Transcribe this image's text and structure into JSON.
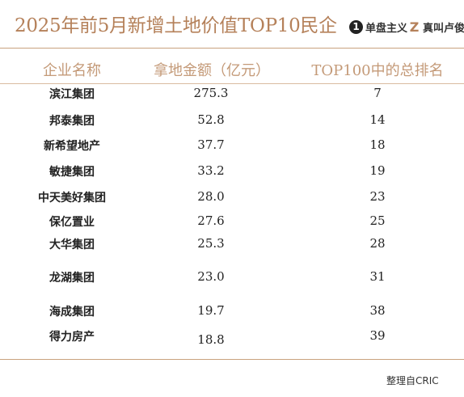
{
  "title": "2025年前5月新增土地价值TOP10民企",
  "brands": [
    {
      "icon": "1",
      "label": "单盘主义"
    },
    {
      "icon": "Z",
      "label": "真叫卢俊"
    }
  ],
  "table": {
    "headers": [
      "企业名称",
      "拿地金额（亿元）",
      "TOP100中的总排名"
    ],
    "rows": [
      {
        "name": "滨江集团",
        "value": "275.3",
        "rank": "7"
      },
      {
        "name": "邦泰集团",
        "value": "52.8",
        "rank": "14"
      },
      {
        "name": "新希望地产",
        "value": "37.7",
        "rank": "18"
      },
      {
        "name": "敏捷集团",
        "value": "33.2",
        "rank": "19"
      },
      {
        "name": "中天美好集团",
        "value": "28.0",
        "rank": "23"
      },
      {
        "name": "保亿置业",
        "value": "27.6",
        "rank": "25"
      },
      {
        "name": "大华集团",
        "value": "25.3",
        "rank": "28"
      },
      {
        "name": "龙湖集团",
        "value": "23.0",
        "rank": "31"
      },
      {
        "name": "海成集团",
        "value": "19.7",
        "rank": "38"
      },
      {
        "name": "得力房产",
        "value": "18.8",
        "rank": "39"
      }
    ]
  },
  "source": "整理自CRIC"
}
